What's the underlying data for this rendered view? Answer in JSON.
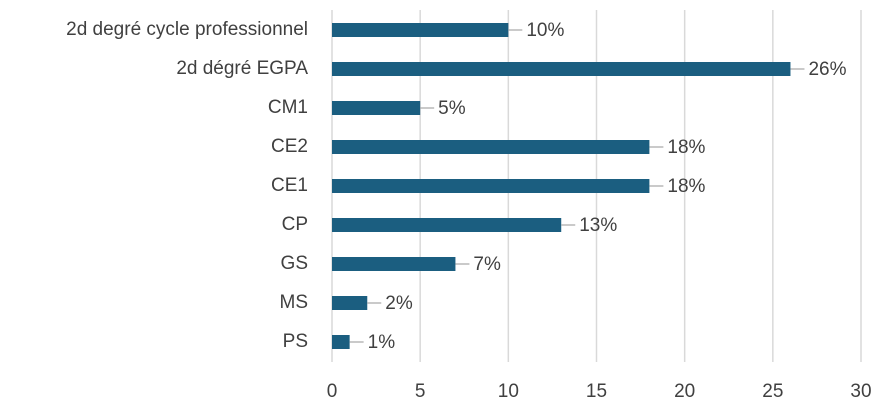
{
  "chart_data": {
    "type": "bar",
    "orientation": "horizontal",
    "categories": [
      "2d degré cycle professionnel",
      "2d dégré EGPA",
      "CM1",
      "CE2",
      "CE1",
      "CP",
      "GS",
      "MS",
      "PS"
    ],
    "values": [
      10,
      26,
      5,
      18,
      18,
      13,
      7,
      2,
      1
    ],
    "value_labels": [
      "10%",
      "26%",
      "5%",
      "18%",
      "18%",
      "13%",
      "7%",
      "2%",
      "1%"
    ],
    "color": "#1b5e80",
    "xlim": [
      0,
      30
    ],
    "xticks": [
      0,
      5,
      10,
      15,
      20,
      25,
      30
    ],
    "grid": true
  }
}
